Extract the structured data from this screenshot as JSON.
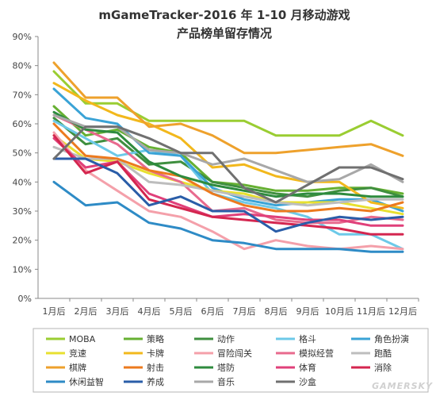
{
  "chart_data": {
    "type": "line",
    "title_line1": "mGameTracker-2016 年 1-10 月移动游戏",
    "title_line2": "产品榜单留存情况",
    "categories": [
      "1月后",
      "2月后",
      "3月后",
      "4月后",
      "5月后",
      "6月后",
      "7月后",
      "8月后",
      "9月后",
      "10月后",
      "11月后",
      "12月后"
    ],
    "y_ticks": [
      "0%",
      "10%",
      "20%",
      "30%",
      "40%",
      "50%",
      "60%",
      "70%",
      "80%",
      "90%"
    ],
    "ylim": [
      0,
      90
    ],
    "y_unit": "%",
    "grid": false,
    "legend_position": "bottom",
    "series": [
      {
        "name": "MOBA",
        "color": "#9acd32",
        "values": [
          78,
          67,
          67,
          61,
          61,
          61,
          61,
          56,
          56,
          56,
          61,
          56
        ]
      },
      {
        "name": "策略",
        "color": "#66b032",
        "values": [
          66,
          56,
          58,
          52,
          50,
          40,
          39,
          37,
          37,
          38,
          38,
          36
        ]
      },
      {
        "name": "动作",
        "color": "#3f8f3f",
        "values": [
          62,
          53,
          55,
          46,
          47,
          40,
          38,
          36,
          35,
          37,
          38,
          35
        ]
      },
      {
        "name": "格斗",
        "color": "#6dc9e8",
        "values": [
          61,
          55,
          49,
          51,
          49,
          36,
          33,
          31,
          28,
          22,
          22,
          17
        ]
      },
      {
        "name": "角色扮演",
        "color": "#3aa3d6",
        "values": [
          72,
          62,
          60,
          50,
          49,
          38,
          34,
          32,
          33,
          34,
          34,
          30
        ]
      },
      {
        "name": "竞速",
        "color": "#e8e030",
        "values": [
          56,
          48,
          47,
          43,
          40,
          37,
          36,
          33,
          33,
          33,
          31,
          29
        ]
      },
      {
        "name": "卡牌",
        "color": "#f2b81c",
        "values": [
          74,
          68,
          63,
          60,
          55,
          45,
          46,
          42,
          40,
          40,
          33,
          31
        ]
      },
      {
        "name": "冒险闯关",
        "color": "#f4a0aa",
        "values": [
          57,
          44,
          37,
          30,
          28,
          23,
          17,
          20,
          18,
          17,
          18,
          17
        ]
      },
      {
        "name": "模拟经营",
        "color": "#e86a8e",
        "values": [
          63,
          58,
          53,
          44,
          40,
          30,
          31,
          27,
          26,
          26,
          28,
          27
        ]
      },
      {
        "name": "跑酷",
        "color": "#bdbdbd",
        "values": [
          52,
          48,
          48,
          40,
          39,
          37,
          35,
          33,
          32,
          33,
          34,
          34
        ]
      },
      {
        "name": "棋牌",
        "color": "#eea12c",
        "values": [
          81,
          69,
          69,
          59,
          60,
          56,
          50,
          50,
          51,
          52,
          53,
          49
        ]
      },
      {
        "name": "射击",
        "color": "#ec7a1e",
        "values": [
          60,
          49,
          48,
          44,
          42,
          36,
          32,
          30,
          30,
          31,
          30,
          33
        ]
      },
      {
        "name": "塔防",
        "color": "#2e8b3e",
        "values": [
          64,
          58,
          57,
          47,
          42,
          39,
          37,
          35,
          36,
          36,
          35,
          35
        ]
      },
      {
        "name": "体育",
        "color": "#e0407a",
        "values": [
          55,
          45,
          47,
          36,
          32,
          28,
          29,
          28,
          27,
          27,
          25,
          25
        ]
      },
      {
        "name": "消除",
        "color": "#d4264f",
        "values": [
          56,
          43,
          47,
          34,
          31,
          28,
          27,
          26,
          25,
          24,
          22,
          22
        ]
      },
      {
        "name": "休闲益智",
        "color": "#2e8bc6",
        "values": [
          40,
          32,
          33,
          26,
          24,
          20,
          19,
          17,
          17,
          17,
          16,
          16
        ]
      },
      {
        "name": "养成",
        "color": "#2a5da8",
        "values": [
          48,
          48,
          43,
          32,
          35,
          30,
          30,
          23,
          26,
          28,
          27,
          28
        ]
      },
      {
        "name": "音乐",
        "color": "#a8a8a8",
        "values": [
          63,
          59,
          59,
          51,
          50,
          46,
          48,
          44,
          40,
          41,
          46,
          40
        ]
      },
      {
        "name": "沙盒",
        "color": "#707070",
        "values": [
          48,
          59,
          59,
          55,
          50,
          50,
          38,
          33,
          39,
          45,
          45,
          41
        ]
      }
    ]
  },
  "watermark": "GAMERSKY"
}
